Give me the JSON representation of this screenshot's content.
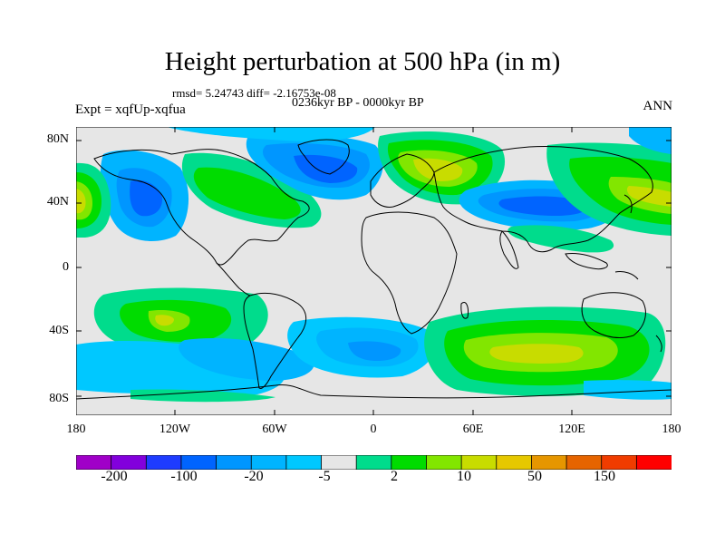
{
  "title": "Height perturbation at 500 hPa (in m)",
  "stats": "rmsd= 5.24743 diff= -2.16753e-08",
  "period": "0236kyr BP - 0000kyr BP",
  "experiment": "Expt = xqfUp-xqfua",
  "season": "ANN",
  "lat_labels": [
    "80N",
    "40N",
    "0",
    "40S",
    "80S"
  ],
  "lon_labels": [
    "180",
    "120W",
    "60W",
    "0",
    "60E",
    "120E",
    "180"
  ],
  "colorbar": {
    "labels": [
      "-200",
      "-100",
      "-20",
      "-5",
      "2",
      "10",
      "50",
      "150"
    ],
    "colors": [
      "#a000c8",
      "#8200dc",
      "#1e3cff",
      "#0064ff",
      "#0096ff",
      "#00b4ff",
      "#00c8ff",
      "#e6e6e6",
      "#00dc8c",
      "#00dc00",
      "#82e600",
      "#c8dc00",
      "#e6c800",
      "#e69600",
      "#e66400",
      "#f03c00",
      "#ff0000"
    ]
  },
  "colors": {
    "neutral": "#e6e6e6",
    "coast": "#000000"
  }
}
